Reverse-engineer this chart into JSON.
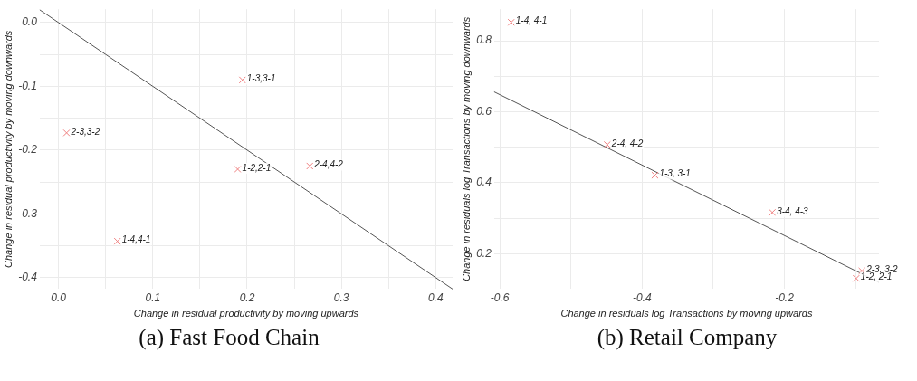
{
  "chart_data": [
    {
      "type": "scatter",
      "title": "(a) Fast Food Chain",
      "xlabel": "Change in residual productivity by moving upwards",
      "ylabel": "Change in residual productivity by moving downwards",
      "xlim": [
        -0.02,
        0.418
      ],
      "ylim": [
        -0.418,
        0.021
      ],
      "xticks": [
        {
          "value": 0,
          "label": "0.0"
        },
        {
          "value": 0.05,
          "label": null
        },
        {
          "value": 0.1,
          "label": "0.1"
        },
        {
          "value": 0.15,
          "label": null
        },
        {
          "value": 0.2,
          "label": "0.2"
        },
        {
          "value": 0.25,
          "label": null
        },
        {
          "value": 0.3,
          "label": "0.3"
        },
        {
          "value": 0.35,
          "label": null
        },
        {
          "value": 0.4,
          "label": "0.4"
        }
      ],
      "yticks": [
        {
          "value": -0.4,
          "label": "-0.4"
        },
        {
          "value": -0.35,
          "label": null
        },
        {
          "value": -0.3,
          "label": "-0.3"
        },
        {
          "value": -0.25,
          "label": null
        },
        {
          "value": -0.2,
          "label": "-0.2"
        },
        {
          "value": -0.15,
          "label": null
        },
        {
          "value": -0.1,
          "label": "-0.1"
        },
        {
          "value": -0.05,
          "label": null
        },
        {
          "value": 0,
          "label": "0.0"
        }
      ],
      "grid": true,
      "legend": false,
      "series": [
        {
          "marker": "cross",
          "color": "#f08080",
          "x": [
            0.0085,
            0.195,
            0.19,
            0.2665,
            0.0624
          ],
          "values": [
            -0.173,
            -0.09,
            -0.23,
            -0.225,
            -0.343
          ]
        },
        {
          "type": "line",
          "marker": "none",
          "color": "#555555",
          "x": [
            -0.02,
            0.418
          ],
          "values": [
            0.02,
            -0.418
          ]
        }
      ],
      "annotations": [
        {
          "text": "2-3,3-2",
          "x": 0.0085,
          "y": -0.173
        },
        {
          "text": "1-3,3-1",
          "x": 0.195,
          "y": -0.09
        },
        {
          "text": "1-2,2-1",
          "x": 0.19,
          "y": -0.23
        },
        {
          "text": "2-4,4-2",
          "x": 0.2665,
          "y": -0.225
        },
        {
          "text": "1-4,4-1",
          "x": 0.0624,
          "y": -0.343
        }
      ]
    },
    {
      "type": "scatter",
      "title": "(b) Retail Company",
      "xlabel": "Change in residuals log Transactions by moving upwards",
      "ylabel": "Change in residuals log Transactions by moving downwards",
      "xlim": [
        -0.608,
        -0.067
      ],
      "ylim": [
        0.1,
        0.889
      ],
      "xticks": [
        {
          "value": -0.6,
          "label": "-0.6"
        },
        {
          "value": -0.5,
          "label": null
        },
        {
          "value": -0.4,
          "label": "-0.4"
        },
        {
          "value": -0.3,
          "label": null
        },
        {
          "value": -0.2,
          "label": "-0.2"
        },
        {
          "value": -0.1,
          "label": null
        }
      ],
      "yticks": [
        {
          "value": 0.2,
          "label": "0.2"
        },
        {
          "value": 0.3,
          "label": null
        },
        {
          "value": 0.4,
          "label": "0.4"
        },
        {
          "value": 0.5,
          "label": null
        },
        {
          "value": 0.6,
          "label": "0.6"
        },
        {
          "value": 0.7,
          "label": null
        },
        {
          "value": 0.8,
          "label": "0.8"
        }
      ],
      "grid": true,
      "legend": false,
      "series": [
        {
          "marker": "cross",
          "color": "#f08080",
          "x": [
            -0.584,
            -0.449,
            -0.382,
            -0.217,
            -0.091,
            -0.099
          ],
          "values": [
            0.852,
            0.507,
            0.421,
            0.316,
            0.151,
            0.13
          ]
        },
        {
          "type": "line",
          "marker": "none",
          "color": "#555555",
          "x": [
            -0.608,
            -0.067
          ],
          "values": [
            0.656,
            0.119
          ]
        }
      ],
      "annotations": [
        {
          "text": "1-4, 4-1",
          "x": -0.584,
          "y": 0.852
        },
        {
          "text": "2-4, 4-2",
          "x": -0.449,
          "y": 0.507
        },
        {
          "text": "1-3, 3-1",
          "x": -0.382,
          "y": 0.421
        },
        {
          "text": "3-4, 4-3",
          "x": -0.217,
          "y": 0.316
        },
        {
          "text": "2-3, 3-2",
          "x": -0.091,
          "y": 0.151
        },
        {
          "text": "1-2, 2-1",
          "x": -0.099,
          "y": 0.13
        }
      ]
    }
  ]
}
